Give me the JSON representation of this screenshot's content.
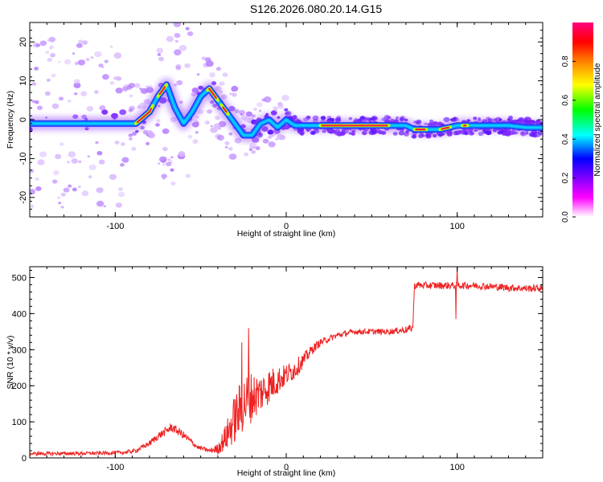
{
  "title": "S126.2026.080.20.14.G15",
  "chart_data": [
    {
      "type": "heatmap",
      "xlabel": "Height of straight line (km)",
      "ylabel": "Frequency (Hz)",
      "xlim": [
        -150,
        150
      ],
      "ylim": [
        -25,
        25
      ],
      "xticks": [
        -100,
        0,
        100
      ],
      "xtick_labels": [
        "-100",
        "0",
        "100"
      ],
      "yticks": [
        -20,
        -10,
        0,
        10,
        20
      ],
      "ytick_labels": [
        "-20",
        "-10",
        "0",
        "10",
        "20"
      ],
      "ridge": {
        "x": [
          -150,
          -130,
          -110,
          -95,
          -88,
          -80,
          -75,
          -70,
          -65,
          -60,
          -55,
          -50,
          -45,
          -40,
          -35,
          -30,
          -25,
          -20,
          -15,
          -10,
          -5,
          0,
          5,
          10,
          20,
          40,
          60,
          70,
          75,
          80,
          85,
          90,
          95,
          100,
          110,
          120,
          130,
          140,
          150
        ],
        "y": [
          -1,
          -1,
          -1,
          -1,
          -1,
          2,
          6,
          9,
          3,
          -1,
          2,
          6,
          8,
          5,
          2,
          -1,
          -4,
          -4,
          -1,
          0,
          -2,
          0,
          -1.5,
          -1.5,
          -1.5,
          -1.5,
          -1.5,
          -1.5,
          -2.5,
          -2.5,
          -2.5,
          -2.5,
          -2,
          -1.5,
          -1.5,
          -1.5,
          -1.5,
          -2,
          -2
        ]
      },
      "colorbar": {
        "label": "Normalized spectral amplitude",
        "range": [
          0,
          1
        ],
        "ticks": [
          0.0,
          0.2,
          0.4,
          0.6,
          0.8
        ],
        "tick_labels": [
          "0.0",
          "0.2",
          "0.4",
          "0.6",
          "0.8"
        ],
        "colors": [
          "#ffffff",
          "#ff00ff",
          "#8000ff",
          "#0000ff",
          "#00ffff",
          "#00ff00",
          "#ffff00",
          "#ff8000",
          "#ff0000",
          "#ff0080"
        ]
      }
    },
    {
      "type": "line",
      "xlabel": "Height of straight line (km)",
      "ylabel": "SNR (10 * v/v)",
      "xlim": [
        -150,
        150
      ],
      "ylim": [
        0,
        530
      ],
      "xticks": [
        -100,
        0,
        100
      ],
      "xtick_labels": [
        "-100",
        "0",
        "100"
      ],
      "yticks": [
        0,
        100,
        200,
        300,
        400,
        500
      ],
      "ytick_labels": [
        "0",
        "100",
        "200",
        "300",
        "400",
        "500"
      ],
      "color": "#ee2222",
      "series": [
        {
          "name": "SNR",
          "x": [
            -150,
            -130,
            -110,
            -95,
            -88,
            -80,
            -75,
            -70,
            -67,
            -62,
            -58,
            -52,
            -45,
            -40,
            -35,
            -30,
            -25,
            -20,
            -15,
            -10,
            -5,
            0,
            5,
            10,
            15,
            20,
            30,
            40,
            50,
            60,
            70,
            74,
            75,
            76,
            80,
            90,
            100,
            110,
            120,
            130,
            140,
            150
          ],
          "y": [
            12,
            12,
            13,
            15,
            20,
            40,
            60,
            75,
            85,
            70,
            55,
            30,
            20,
            25,
            60,
            110,
            150,
            170,
            180,
            200,
            215,
            230,
            245,
            270,
            300,
            320,
            340,
            350,
            350,
            350,
            355,
            360,
            475,
            480,
            478,
            478,
            478,
            478,
            475,
            472,
            470,
            470
          ],
          "noise": [
            5,
            5,
            5,
            5,
            6,
            8,
            10,
            12,
            12,
            12,
            10,
            6,
            5,
            15,
            40,
            70,
            80,
            70,
            55,
            50,
            40,
            30,
            28,
            20,
            14,
            10,
            8,
            8,
            8,
            8,
            10,
            10,
            10,
            10,
            10,
            10,
            10,
            10,
            10,
            10,
            10,
            10
          ],
          "spikes": [
            {
              "x": 100,
              "y": 530
            },
            {
              "x": 99.3,
              "y": 385
            },
            {
              "x": -22,
              "y": 360
            },
            {
              "x": -26,
              "y": 320
            },
            {
              "x": -38,
              "y": 45
            }
          ]
        }
      ]
    }
  ]
}
